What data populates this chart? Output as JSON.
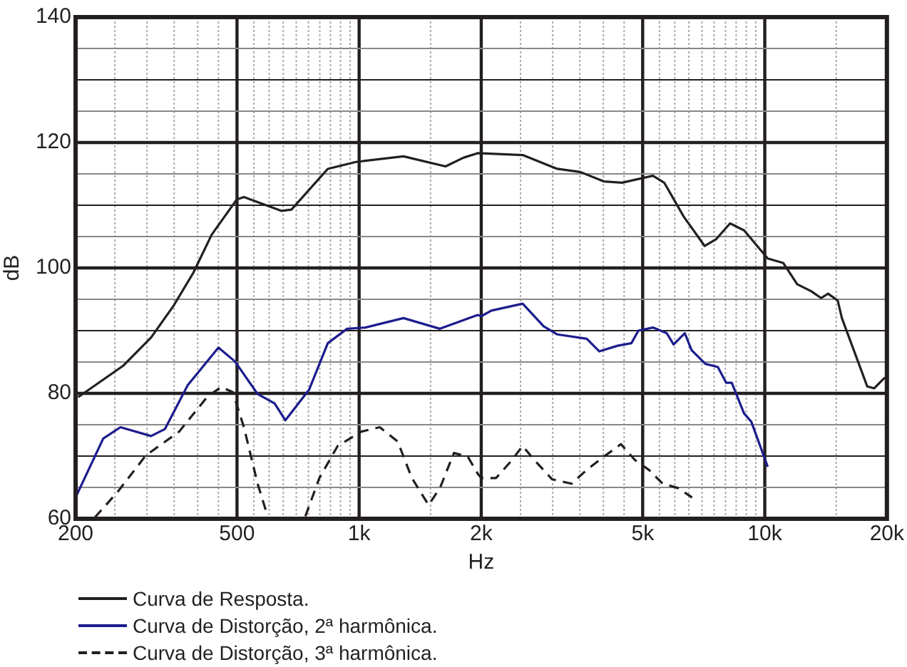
{
  "chart_data": {
    "type": "line",
    "xlabel": "Hz",
    "ylabel": "dB",
    "log": "x",
    "grid": true,
    "legend": "bottom",
    "marker": "none",
    "line_style": "solid",
    "xlim": [
      200,
      20000
    ],
    "ylim": [
      60,
      140
    ],
    "xticks": [
      {
        "value": 200,
        "label": "200"
      },
      {
        "value": 250,
        "label": null
      },
      {
        "value": 300,
        "label": null
      },
      {
        "value": 350,
        "label": null
      },
      {
        "value": 400,
        "label": null
      },
      {
        "value": 450,
        "label": null
      },
      {
        "value": 500,
        "label": "500"
      },
      {
        "value": 550,
        "label": null
      },
      {
        "value": 600,
        "label": null
      },
      {
        "value": 650,
        "label": null
      },
      {
        "value": 700,
        "label": null
      },
      {
        "value": 750,
        "label": null
      },
      {
        "value": 800,
        "label": null
      },
      {
        "value": 850,
        "label": null
      },
      {
        "value": 900,
        "label": null
      },
      {
        "value": 950,
        "label": null
      },
      {
        "value": 1000,
        "label": "1k"
      },
      {
        "value": 1500,
        "label": null
      },
      {
        "value": 2000,
        "label": "2k"
      },
      {
        "value": 2500,
        "label": null
      },
      {
        "value": 3000,
        "label": null
      },
      {
        "value": 3500,
        "label": null
      },
      {
        "value": 4000,
        "label": null
      },
      {
        "value": 4500,
        "label": null
      },
      {
        "value": 5000,
        "label": "5k"
      },
      {
        "value": 5500,
        "label": null
      },
      {
        "value": 6000,
        "label": null
      },
      {
        "value": 6500,
        "label": null
      },
      {
        "value": 7000,
        "label": null
      },
      {
        "value": 7500,
        "label": null
      },
      {
        "value": 8000,
        "label": null
      },
      {
        "value": 8500,
        "label": null
      },
      {
        "value": 9000,
        "label": null
      },
      {
        "value": 9500,
        "label": null
      },
      {
        "value": 10000,
        "label": "10k"
      },
      {
        "value": 15000,
        "label": null
      },
      {
        "value": 20000,
        "label": "20k"
      }
    ],
    "yticks": [
      60,
      {
        "value": 65,
        "label": null
      },
      {
        "value": 70,
        "label": null
      },
      {
        "value": 75,
        "label": null
      },
      80,
      {
        "value": 85,
        "label": null
      },
      {
        "value": 90,
        "label": null
      },
      {
        "value": 95,
        "label": null
      },
      100,
      {
        "value": 105,
        "label": null
      },
      {
        "value": 110,
        "label": null
      },
      {
        "value": 115,
        "label": null
      },
      120,
      {
        "value": 125,
        "label": null
      },
      {
        "value": 130,
        "label": null
      },
      {
        "value": 135,
        "label": null
      },
      140
    ],
    "series": [
      {
        "name": "Curva de Resposta.",
        "color": "#231f20",
        "x": [
          203,
          262,
          307,
          349,
          390,
          433,
          499,
          520,
          644,
          681,
          837,
          982,
          1286,
          1633,
          1811,
          1960,
          2530,
          3080,
          3510,
          4010,
          4450,
          5300,
          5650,
          6310,
          7110,
          7590,
          8210,
          8890,
          10170,
          11100,
          12020,
          13010,
          13770,
          14320,
          15130,
          15490,
          17890,
          18610,
          19680,
          20000
        ],
        "values": [
          79.4,
          84.4,
          88.9,
          94,
          99.2,
          105.3,
          110.9,
          111.3,
          109.1,
          109.3,
          115.8,
          116.9,
          117.8,
          116.2,
          117.6,
          118.3,
          118,
          115.8,
          115.3,
          113.8,
          113.6,
          114.7,
          113.6,
          108.2,
          103.5,
          104.6,
          107.1,
          106,
          101.5,
          100.8,
          97.4,
          96.3,
          95.2,
          95.9,
          94.8,
          92,
          81.1,
          80.8,
          82.4,
          82.6
        ]
      },
      {
        "name": "Curva de Distorção, 2ª harmônica.",
        "color": "#1c1c8e",
        "x": [
          200,
          234,
          258,
          307,
          332,
          378,
          450,
          494,
          562,
          619,
          658,
          753,
          837,
          934,
          1036,
          1286,
          1582,
          1960,
          2000,
          2118,
          2530,
          2850,
          3080,
          3640,
          3910,
          4340,
          4690,
          4880,
          5300,
          5730,
          5960,
          6350,
          6600,
          7140,
          7660,
          8030,
          8290,
          8890,
          9260,
          10170
        ],
        "values": [
          63.4,
          72.8,
          74.6,
          73.2,
          74.3,
          81.3,
          87.3,
          85.1,
          79.9,
          78.4,
          75.7,
          80.6,
          88,
          90.3,
          90.5,
          92,
          90.3,
          92.5,
          92.3,
          93.2,
          94.3,
          90.7,
          89.4,
          88.7,
          86.7,
          87.6,
          88,
          90,
          90.5,
          89.6,
          87.8,
          89.6,
          86.9,
          84.7,
          84.2,
          81.7,
          81.7,
          76.8,
          75.5,
          68.3
        ]
      },
      {
        "name": "Curva de Distorção, 3ª harmônica.",
        "color": "#231f20",
        "line_style": "dashed",
        "x": [
          223,
          254,
          298,
          360,
          423,
          457,
          488,
          520,
          562,
          595,
          666,
          737,
          798,
          885,
          1013,
          1124,
          1245,
          1349,
          1483,
          1582,
          1713,
          1853,
          1960,
          2000,
          2175,
          2355,
          2530,
          2700,
          2990,
          3340,
          3640,
          4010,
          4420,
          4780,
          5180,
          5600,
          6110,
          6620
        ],
        "values": [
          60.2,
          64.3,
          70.1,
          73.9,
          79.5,
          81,
          80.2,
          74.6,
          65.6,
          60.4,
          null,
          60.4,
          66.5,
          71.6,
          73.9,
          74.6,
          72.3,
          66.5,
          62.2,
          64.9,
          70.5,
          69.9,
          67.2,
          66.5,
          66.5,
          69,
          71.6,
          69.4,
          66.3,
          65.6,
          67.8,
          69.9,
          71.9,
          69.4,
          67.8,
          65.6,
          64.9,
          63.4
        ]
      }
    ]
  }
}
